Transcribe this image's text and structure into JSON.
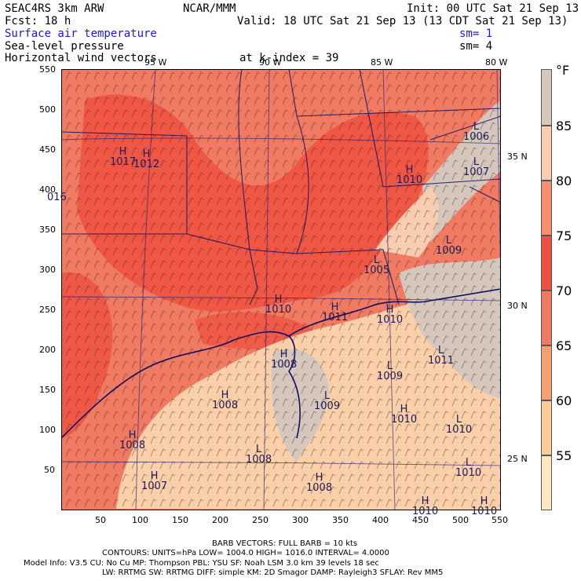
{
  "header": {
    "title": "SEAC4RS  3km ARW",
    "center": "NCAR/MMM",
    "init": "Init: 00 UTC Sat 21 Sep 13",
    "fcst": "Fcst:   18 h",
    "valid": "Valid: 18 UTC Sat 21 Sep 13 (13 CDT Sat 21 Sep 13)",
    "field1": "Surface air temperature",
    "field2": "Sea-level pressure",
    "field3": "Horizontal wind vectors",
    "sm1": "sm= 1",
    "sm2": "sm= 4",
    "level": "at k-index =  39"
  },
  "lon_labels": [
    "95 W",
    "90 W",
    "85 W",
    "80 W"
  ],
  "lat_labels": [
    "35 N",
    "30 N",
    "25 N"
  ],
  "y_ticks": [
    "550",
    "500",
    "450",
    "400",
    "350",
    "300",
    "250",
    "200",
    "150",
    "100",
    "50"
  ],
  "x_ticks": [
    "50",
    "100",
    "150",
    "200",
    "250",
    "300",
    "350",
    "400",
    "450",
    "500",
    "550"
  ],
  "legend": {
    "unit": "°F",
    "labels": [
      "85",
      "80",
      "75",
      "70",
      "65",
      "60",
      "55"
    ],
    "colors": [
      "#d8c8bc",
      "#f9cdb0",
      "#f59070",
      "#f05040",
      "#f07a62",
      "#f5a070",
      "#fbcc98",
      "#fde8c0"
    ]
  },
  "pressure_labels": [
    {
      "type": "L",
      "value": "1006"
    },
    {
      "type": "L",
      "value": "1007"
    },
    {
      "type": "H",
      "value": "1012"
    },
    {
      "type": "H",
      "value": "1010"
    },
    {
      "type": "L",
      "value": "1005"
    },
    {
      "type": "L",
      "value": "1009"
    },
    {
      "type": "H",
      "value": "1010"
    },
    {
      "type": "H",
      "value": "1011"
    },
    {
      "type": "H",
      "value": "1010"
    },
    {
      "type": "L",
      "value": "1011"
    },
    {
      "type": "H",
      "value": "1008"
    },
    {
      "type": "L",
      "value": "1009"
    },
    {
      "type": "L",
      "value": "1009"
    },
    {
      "type": "H",
      "value": "1008"
    },
    {
      "type": "H",
      "value": "1010"
    },
    {
      "type": "L",
      "value": "1010"
    },
    {
      "type": "H",
      "value": "1008"
    },
    {
      "type": "L",
      "value": "1008"
    },
    {
      "type": "H",
      "value": "1007"
    },
    {
      "type": "H",
      "value": "1008"
    },
    {
      "type": "L",
      "value": "1010"
    },
    {
      "type": "H",
      "value": "1010"
    },
    {
      "type": "H",
      "value": "1010"
    },
    {
      "type": "H",
      "value": "1017"
    },
    {
      "type": "",
      "value": "016"
    }
  ],
  "footer": {
    "barb": "BARB VECTORS:  FULL BARB = 10 kts",
    "contours": "CONTOURS:  UNITS=hPa  LOW=   1004.0      HIGH=   1016.0      INTERVAL=     4.0000",
    "model1": "Model Info: V3.5      CU: No Cu       MP: Thompson     PBL: YSU        SF: Noah LSM     3.0 km   39 levels   18 sec",
    "model2": "LW: RRTMG    SW: RRTMG   DIFF: simple KM: 2D Smagor DAMP: Rayleigh3  SFLAY: Rev MM5"
  }
}
